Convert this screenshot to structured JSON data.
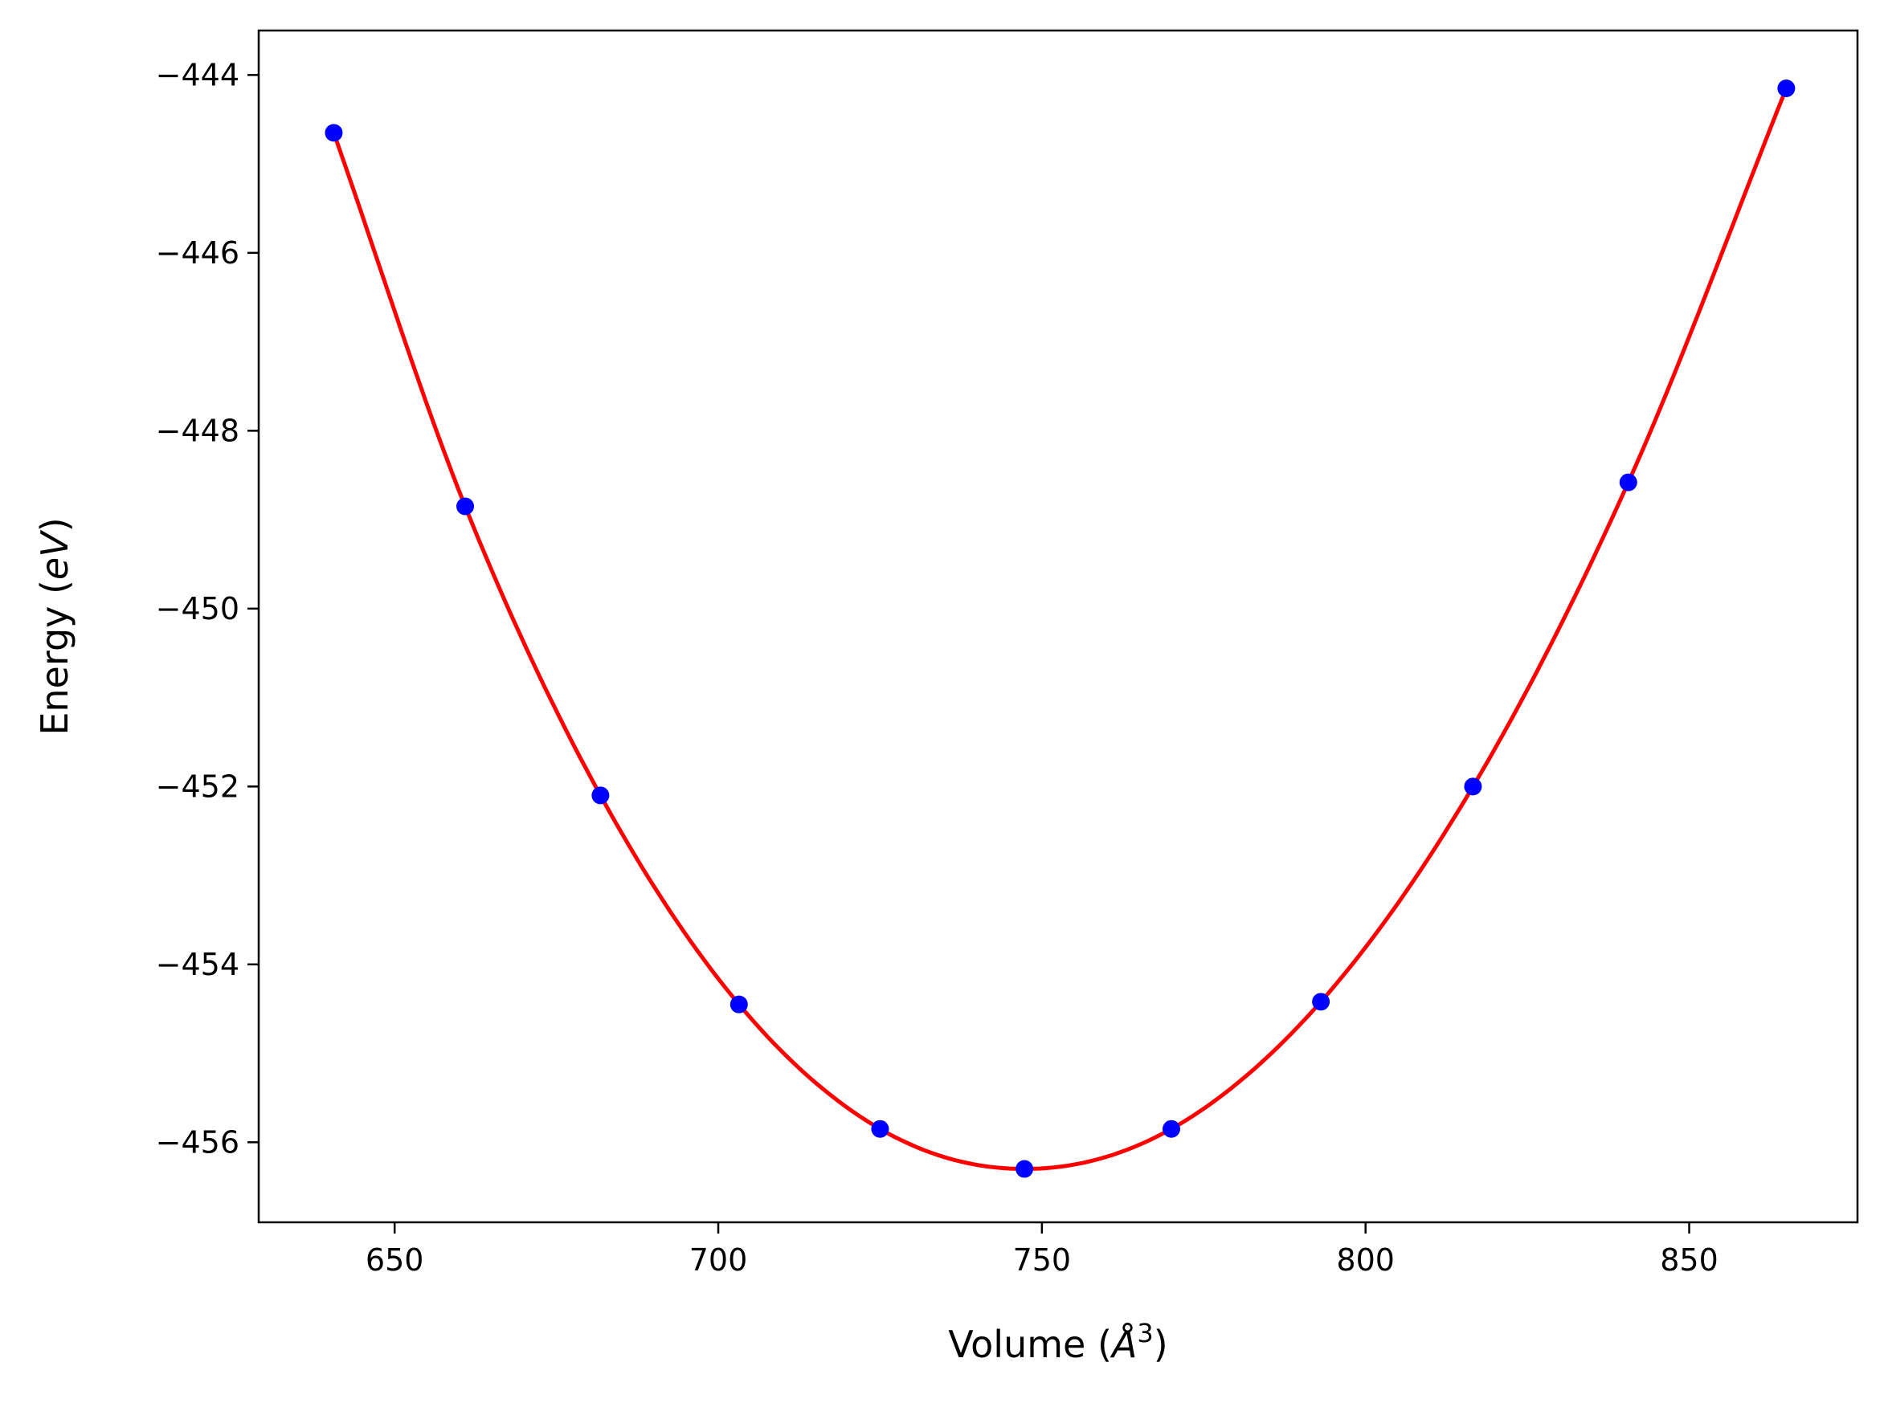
{
  "chart_data": {
    "type": "scatter",
    "title": "",
    "xlabel": "Volume",
    "xlabel_unit": "Å",
    "xlabel_exponent": "3",
    "ylabel": "Energy",
    "ylabel_unit": "eV",
    "xlim": [
      629,
      876
    ],
    "ylim": [
      -456.9,
      -443.5
    ],
    "xticks": [
      650,
      700,
      750,
      800,
      850
    ],
    "yticks": [
      -444,
      -446,
      -448,
      -450,
      -452,
      -454,
      -456
    ],
    "grid": false,
    "series": [
      {
        "kind": "points",
        "color": "#0000ff",
        "x": [
          640.6,
          660.9,
          681.8,
          703.2,
          725.0,
          747.3,
          770.0,
          793.1,
          816.6,
          840.6,
          865.0
        ],
        "y": [
          -444.65,
          -448.85,
          -452.1,
          -454.45,
          -455.85,
          -456.3,
          -455.85,
          -454.42,
          -452.0,
          -448.58,
          -444.15
        ]
      },
      {
        "kind": "fit-line",
        "color": "#ff0000",
        "x": [
          640.6,
          660.9,
          681.8,
          703.2,
          725.0,
          747.3,
          770.0,
          793.1,
          816.6,
          840.6,
          865.0
        ],
        "y": [
          -444.65,
          -448.85,
          -452.1,
          -454.45,
          -455.85,
          -456.3,
          -455.85,
          -454.42,
          -452.0,
          -448.58,
          -444.15
        ]
      }
    ]
  }
}
